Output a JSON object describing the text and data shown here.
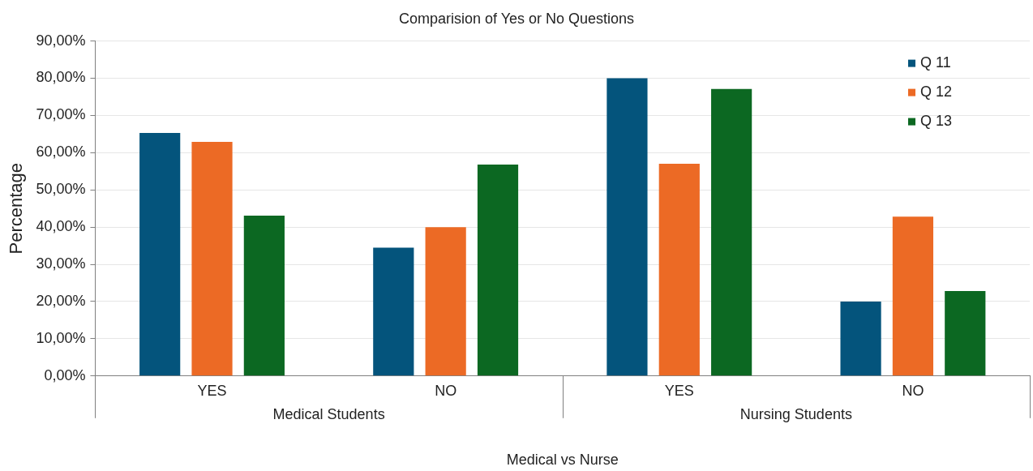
{
  "chart_data": {
    "type": "bar",
    "title": "Comparision of Yes or No Questions",
    "xlabel": "Medical vs Nurse",
    "ylabel": "Percentage",
    "categories": [
      "YES",
      "NO",
      "YES",
      "NO"
    ],
    "annotations": [
      "Medical Students",
      "Nursing Students"
    ],
    "series": [
      {
        "name": "Q 11",
        "color": "#04547c",
        "values": [
          65.3,
          34.5,
          80.0,
          20.0
        ]
      },
      {
        "name": "Q 12",
        "color": "#ec6a25",
        "values": [
          62.9,
          40.0,
          57.0,
          42.8
        ]
      },
      {
        "name": "Q 13",
        "color": "#0c6822",
        "values": [
          43.1,
          56.8,
          77.1,
          22.8
        ]
      }
    ],
    "ylim": [
      0,
      90
    ],
    "yticks": [
      {
        "value": 0,
        "label": "0,00%"
      },
      {
        "value": 10,
        "label": "10,00%"
      },
      {
        "value": 20,
        "label": "20,00%"
      },
      {
        "value": 30,
        "label": "30,00%"
      },
      {
        "value": 40,
        "label": "40,00%"
      },
      {
        "value": 50,
        "label": "50,00%"
      },
      {
        "value": 60,
        "label": "60,00%"
      },
      {
        "value": 70,
        "label": "70,00%"
      },
      {
        "value": 80,
        "label": "80,00%"
      },
      {
        "value": 90,
        "label": "90,00%"
      }
    ],
    "grid": "y",
    "legend": "top right",
    "marker": "square"
  }
}
